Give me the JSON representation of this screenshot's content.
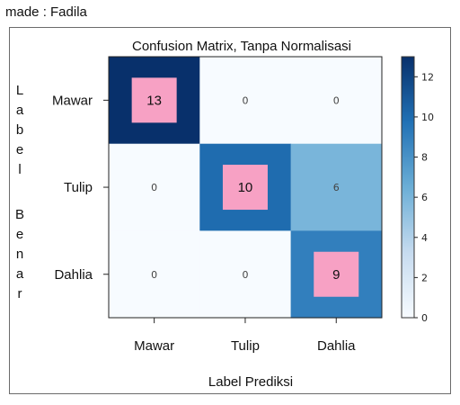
{
  "caption": "made : Fadila",
  "chart_data": {
    "type": "heatmap",
    "title": "Confusion Matrix, Tanpa Normalisasi",
    "xlabel": "Label Prediksi",
    "ylabel": "Label Benar",
    "row_labels": [
      "Mawar",
      "Tulip",
      "Dahlia"
    ],
    "col_labels": [
      "Mawar",
      "Tulip",
      "Dahlia"
    ],
    "values": [
      [
        13,
        0,
        0
      ],
      [
        0,
        10,
        6
      ],
      [
        0,
        0,
        9
      ]
    ],
    "highlighted_cells": [
      [
        0,
        0
      ],
      [
        1,
        1
      ],
      [
        2,
        2
      ]
    ],
    "colorbar": {
      "min": 0,
      "max": 13,
      "ticks": [
        0,
        2,
        4,
        6,
        8,
        10,
        12
      ]
    },
    "colormap": {
      "low": "#f7fbff",
      "mid": "#6baed6",
      "high": "#08306b"
    },
    "highlight_color": "#f7a1c4"
  }
}
